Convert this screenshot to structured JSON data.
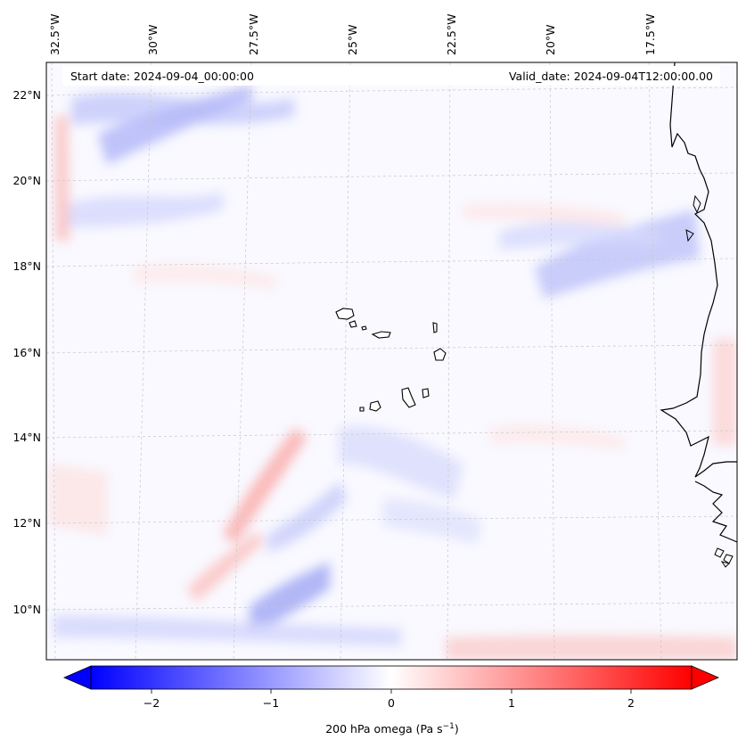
{
  "header": {
    "start_date": "Start date: 2024-09-04_00:00:00",
    "valid_date": "Valid_date: 2024-09-04T12:00:00.00"
  },
  "axes": {
    "lon_labels": [
      "32.5°W",
      "30°W",
      "27.5°W",
      "25°W",
      "22.5°W",
      "20°W",
      "17.5°W"
    ],
    "lat_labels": [
      "22°N",
      "20°N",
      "18°N",
      "16°N",
      "14°N",
      "12°N",
      "10°N"
    ]
  },
  "colorbar": {
    "label_main": "200 hPa omega (Pa s",
    "label_exp": "−1",
    "label_end": ")",
    "ticks": [
      "−2",
      "−1",
      "0",
      "1",
      "2"
    ],
    "min_value": -2.5,
    "max_value": 2.5,
    "neg_color": "#0000ff",
    "zero_color": "#ffffff",
    "pos_color": "#ff0000"
  },
  "colors": {
    "background_field": "#f9f9ff",
    "coast": "#000000",
    "grid": "#c8c8c8"
  }
}
